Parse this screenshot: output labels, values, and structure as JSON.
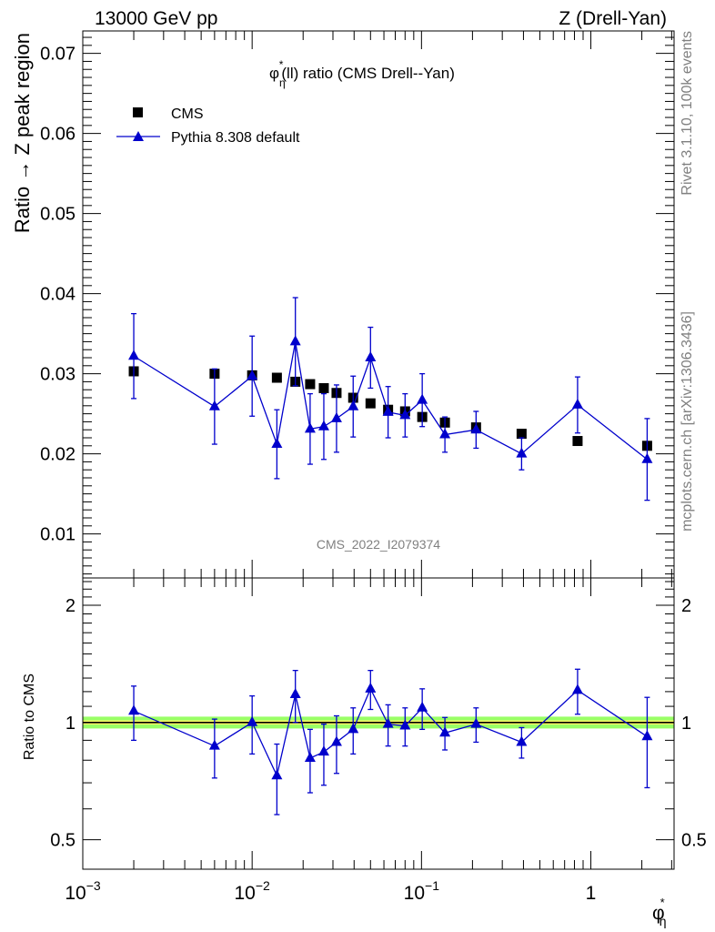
{
  "header": {
    "left": "13000 GeV pp",
    "right": "Z (Drell-Yan)"
  },
  "side": {
    "rivet": "Rivet 3.1.10,  100k events",
    "mcplots": "mcplots.cern.ch [arXiv:1306.3436]"
  },
  "watermark": "CMS_2022_I2079374",
  "colors": {
    "mc": "#0000cc",
    "data": "#000000",
    "band_inner": "#ffff66",
    "band_outer": "#99ff66"
  },
  "chart_data": [
    {
      "type": "scatter",
      "title": "φ*η(ll) ratio (CMS Drell--Yan)",
      "title_parts": {
        "sym": "φ",
        "sup": "*",
        "sub": "η",
        "rest": "(ll) ratio (CMS Drell--Yan)"
      },
      "ylabel": "Ratio → Z peak region",
      "xlabel": "φ*η",
      "xscale": "log",
      "xlim": [
        0.001,
        3.1
      ],
      "ylim": [
        0.0045,
        0.0728
      ],
      "yticks": [
        0.01,
        0.02,
        0.03,
        0.04,
        0.05,
        0.06,
        0.07
      ],
      "ytick_labels": [
        "0.01",
        "0.02",
        "0.03",
        "0.04",
        "0.05",
        "0.06",
        "0.07"
      ],
      "legend": "top-left",
      "series": [
        {
          "name": "CMS",
          "marker": "square",
          "x": [
            0.002,
            0.006,
            0.01,
            0.014,
            0.018,
            0.022,
            0.0265,
            0.0315,
            0.0395,
            0.05,
            0.0635,
            0.08,
            0.101,
            0.1375,
            0.21,
            0.39,
            0.835,
            2.15
          ],
          "y": [
            0.0303,
            0.03,
            0.0298,
            0.0295,
            0.029,
            0.0287,
            0.0282,
            0.0276,
            0.027,
            0.0263,
            0.0255,
            0.0253,
            0.0246,
            0.0239,
            0.0233,
            0.0225,
            0.0216,
            0.021
          ]
        },
        {
          "name": "Pythia 8.308 default",
          "marker": "triangle",
          "x": [
            0.002,
            0.006,
            0.01,
            0.014,
            0.018,
            0.022,
            0.0265,
            0.0315,
            0.0395,
            0.05,
            0.0635,
            0.08,
            0.101,
            0.1375,
            0.21,
            0.39,
            0.835,
            2.15
          ],
          "y": [
            0.0322,
            0.0259,
            0.0297,
            0.0212,
            0.034,
            0.0231,
            0.0234,
            0.0244,
            0.0259,
            0.032,
            0.0252,
            0.0248,
            0.0267,
            0.0224,
            0.023,
            0.02,
            0.0261,
            0.0193
          ],
          "err": [
            0.0053,
            0.0047,
            0.005,
            0.0043,
            0.0055,
            0.0044,
            0.0041,
            0.0042,
            0.0038,
            0.0038,
            0.0032,
            0.0027,
            0.0033,
            0.0022,
            0.0023,
            0.002,
            0.0035,
            0.0051
          ]
        }
      ]
    },
    {
      "type": "scatter",
      "ylabel": "Ratio to CMS",
      "xscale": "log",
      "yscale": "log",
      "xlim": [
        0.001,
        3.1
      ],
      "ylim": [
        0.42,
        2.35
      ],
      "yticks": [
        0.5,
        1,
        2
      ],
      "ytick_labels": [
        "0.5",
        "1",
        "2"
      ],
      "xticks": [
        0.001,
        0.01,
        0.1,
        1
      ],
      "xtick_labels": [
        {
          "base": "10",
          "exp": "−3"
        },
        {
          "base": "10",
          "exp": "−2"
        },
        {
          "base": "10",
          "exp": "−1"
        },
        {
          "base": "1",
          "exp": ""
        }
      ],
      "band": {
        "center": 1.0,
        "inner": 0.012,
        "outer": 0.035
      },
      "series": [
        {
          "name": "Pythia 8.308 default",
          "x": [
            0.002,
            0.006,
            0.01,
            0.014,
            0.018,
            0.022,
            0.0265,
            0.0315,
            0.0395,
            0.05,
            0.0635,
            0.08,
            0.101,
            0.1375,
            0.21,
            0.39,
            0.835,
            2.15
          ],
          "y": [
            1.07,
            0.87,
            1.0,
            0.73,
            1.18,
            0.81,
            0.84,
            0.89,
            0.96,
            1.22,
            0.99,
            0.98,
            1.09,
            0.94,
            0.99,
            0.89,
            1.21,
            0.92
          ],
          "err": [
            0.17,
            0.15,
            0.17,
            0.15,
            0.18,
            0.15,
            0.15,
            0.15,
            0.13,
            0.14,
            0.12,
            0.11,
            0.13,
            0.09,
            0.1,
            0.08,
            0.16,
            0.24
          ]
        }
      ]
    }
  ]
}
